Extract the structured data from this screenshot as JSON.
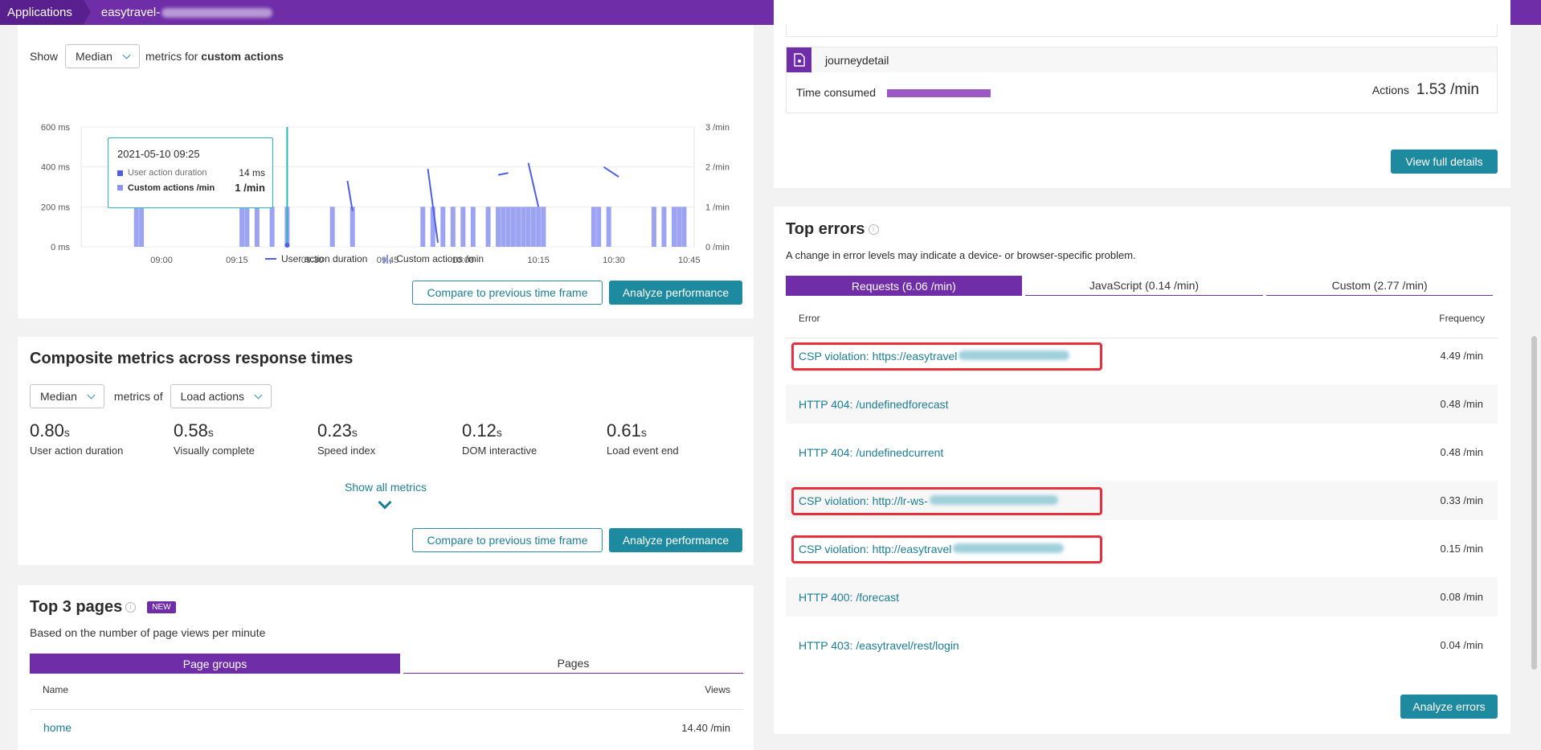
{
  "breadcrumb": {
    "root": "Applications",
    "app": "easytravel-"
  },
  "actions_chart": {
    "show_label": "Show",
    "metric_select": "Median",
    "metrics_for_label": "metrics for",
    "metrics_for_target": "custom actions",
    "y_left_ticks": [
      "600 ms",
      "400 ms",
      "200 ms",
      "0 ms"
    ],
    "y_right_ticks": [
      "3 /min",
      "2 /min",
      "1 /min",
      "0 /min"
    ],
    "x_ticks": [
      "09:00",
      "09:15",
      "09:30",
      "09:45",
      "10:00",
      "10:15",
      "10:30",
      "10:45"
    ],
    "tooltip": {
      "time": "2021-05-10 09:25",
      "row1_label": "User action duration",
      "row1_value": "14 ms",
      "row2_label": "Custom actions /min",
      "row2_value": "1 /min"
    },
    "legend_duration": "User action duration",
    "legend_actions": "Custom actions /min",
    "compare_button": "Compare to previous time frame",
    "analyze_button": "Analyze performance",
    "colors": {
      "duration": "#4f5ee8",
      "actions": "#8b93f0",
      "cursor": "#2bb5c0"
    }
  },
  "chart_data": {
    "type": "bar",
    "title": "",
    "x": [
      "08:55",
      "08:56",
      "09:16",
      "09:17",
      "09:19",
      "09:22",
      "09:25",
      "09:34",
      "09:38",
      "09:52",
      "09:54",
      "09:56",
      "09:58",
      "10:00",
      "10:02",
      "10:05",
      "10:07",
      "10:08",
      "10:09",
      "10:10",
      "10:11",
      "10:12",
      "10:13",
      "10:14",
      "10:15",
      "10:16",
      "10:26",
      "10:27",
      "10:29",
      "10:38",
      "10:40",
      "10:42",
      "10:43",
      "10:44"
    ],
    "series": [
      {
        "name": "Custom actions /min",
        "axis": "right",
        "values": [
          1,
          1,
          1,
          1,
          1,
          1,
          1,
          1,
          1,
          1,
          1,
          1,
          1,
          1,
          1,
          1,
          1,
          1,
          1,
          1,
          1,
          1,
          1,
          1,
          1,
          1,
          1,
          1,
          1,
          1,
          1,
          1,
          1,
          1
        ]
      }
    ],
    "duration_ms_points": [
      [
        "09:37",
        330
      ],
      [
        "09:38",
        180
      ],
      [
        "09:53",
        390
      ],
      [
        "09:55",
        20
      ],
      [
        "10:07",
        360
      ],
      [
        "10:09",
        370
      ],
      [
        "10:13",
        420
      ],
      [
        "10:15",
        200
      ],
      [
        "10:28",
        400
      ],
      [
        "10:31",
        350
      ]
    ],
    "ylim_left": [
      0,
      600
    ],
    "ylim_right": [
      0,
      3
    ]
  },
  "composite": {
    "title": "Composite metrics across response times",
    "select_metric": "Median",
    "metrics_of_label": "metrics of",
    "select_actions": "Load actions",
    "metrics": [
      {
        "value": "0.80",
        "unit": "s",
        "label": "User action duration"
      },
      {
        "value": "0.58",
        "unit": "s",
        "label": "Visually complete"
      },
      {
        "value": "0.23",
        "unit": "s",
        "label": "Speed index"
      },
      {
        "value": "0.12",
        "unit": "s",
        "label": "DOM interactive"
      },
      {
        "value": "0.61",
        "unit": "s",
        "label": "Load event end"
      }
    ],
    "show_all": "Show all metrics",
    "compare_button": "Compare to previous time frame",
    "analyze_button": "Analyze performance"
  },
  "top_pages": {
    "title": "Top 3 pages",
    "badge": "NEW",
    "subtitle": "Based on the number of page views per minute",
    "tabs": [
      "Page groups",
      "Pages"
    ],
    "col_name": "Name",
    "col_views": "Views",
    "rows": [
      {
        "name": "home",
        "views": "14.40 /min"
      }
    ]
  },
  "journey": {
    "name": "journeydetail",
    "time_label": "Time consumed",
    "actions_label": "Actions",
    "actions_value": "1.53 /min",
    "view_button": "View full details"
  },
  "top_errors": {
    "title": "Top errors",
    "subtitle": "A change in error levels may indicate a device- or browser-specific problem.",
    "tabs": [
      "Requests (6.06 /min)",
      "JavaScript (0.14 /min)",
      "Custom (2.77 /min)"
    ],
    "col_error": "Error",
    "col_frequency": "Frequency",
    "rows": [
      {
        "error": "CSP violation: https://easytravel",
        "freq": "4.49 /min"
      },
      {
        "error": "HTTP 404: /undefinedforecast",
        "freq": "0.48 /min"
      },
      {
        "error": "HTTP 404: /undefinedcurrent",
        "freq": "0.48 /min"
      },
      {
        "error": "CSP violation: http://lr-ws-",
        "freq": "0.33 /min"
      },
      {
        "error": "CSP violation: http://easytravel",
        "freq": "0.15 /min"
      },
      {
        "error": "HTTP 400: /forecast",
        "freq": "0.08 /min"
      },
      {
        "error": "HTTP 403: /easytravel/rest/login",
        "freq": "0.04 /min"
      }
    ],
    "analyze_button": "Analyze errors"
  }
}
